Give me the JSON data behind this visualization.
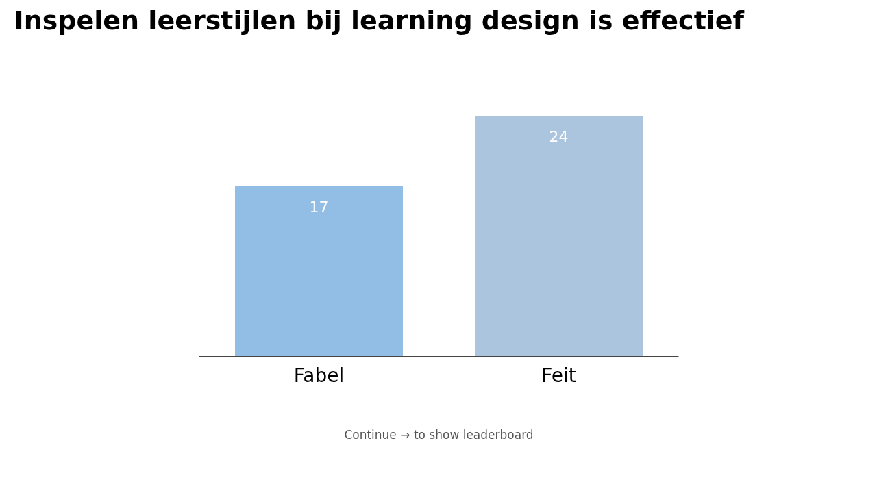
{
  "chart_data": {
    "type": "bar",
    "title": "Inspelen leerstijlen bij learning design is effectief",
    "categories": [
      "Fabel",
      "Feit"
    ],
    "values": [
      17,
      24
    ],
    "colors": [
      "#92bee6",
      "#abc5df"
    ],
    "data_labels": true,
    "grid": false,
    "annotations": [
      "Continue → to show leaderboard"
    ]
  }
}
